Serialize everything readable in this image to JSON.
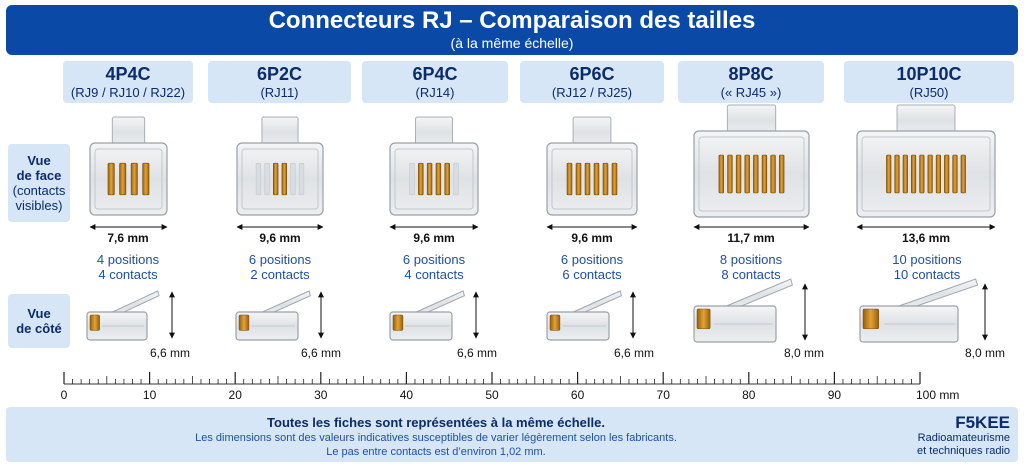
{
  "title": "Connecteurs RJ – Comparaison des tailles",
  "subtitle": "(à la même échelle)",
  "row_labels": {
    "front_line1": "Vue",
    "front_line2": "de face",
    "front_line3": "(contacts",
    "front_line4": "visibles)",
    "side_line1": "Vue",
    "side_line2": "de côté"
  },
  "connectors": [
    {
      "name": "4P4C",
      "aliases": "(RJ9 / RJ10 / RJ22)",
      "width": "7,6 mm",
      "positions": "4 positions",
      "contacts_text": "4 contacts",
      "height": "6,6 mm",
      "n_pos": 4,
      "n_contacts": 4
    },
    {
      "name": "6P2C",
      "aliases": "(RJ11)",
      "width": "9,6 mm",
      "positions": "6 positions",
      "contacts_text": "2 contacts",
      "height": "6,6 mm",
      "n_pos": 6,
      "n_contacts": 2
    },
    {
      "name": "6P4C",
      "aliases": "(RJ14)",
      "width": "9,6 mm",
      "positions": "6 positions",
      "contacts_text": "4 contacts",
      "height": "6,6 mm",
      "n_pos": 6,
      "n_contacts": 4
    },
    {
      "name": "6P6C",
      "aliases": "(RJ12 / RJ25)",
      "width": "9,6 mm",
      "positions": "6 positions",
      "contacts_text": "6 contacts",
      "height": "6,6 mm",
      "n_pos": 6,
      "n_contacts": 6
    },
    {
      "name": "8P8C",
      "aliases": "(« RJ45 »)",
      "width": "11,7 mm",
      "positions": "8 positions",
      "contacts_text": "8 contacts",
      "height": "8,0 mm",
      "n_pos": 8,
      "n_contacts": 8
    },
    {
      "name": "10P10C",
      "aliases": "(RJ50)",
      "width": "13,6 mm",
      "positions": "10 positions",
      "contacts_text": "10 contacts",
      "height": "8,0 mm",
      "n_pos": 10,
      "n_contacts": 10
    }
  ],
  "ruler": {
    "labels": [
      "0",
      "10",
      "20",
      "30",
      "40",
      "50",
      "60",
      "70",
      "80",
      "90",
      "100 mm"
    ],
    "max_mm": 100
  },
  "footer": {
    "main": "Toutes les fiches sont représentées à la même échelle.",
    "note1": "Les dimensions sont des valeurs indicatives susceptibles de varier légèrement selon les fabricants.",
    "note2": "Le pas entre contacts est d’environ 1,02 mm.",
    "brand": "F5KEE",
    "brand_line1": "Radioamateurisme",
    "brand_line2": "et techniques radio"
  },
  "colors": {
    "banner": "#0a4aa6",
    "label_bg": "#d6e6f7",
    "contact_gold": "#c8860f",
    "caption_blue": "#1f4fa8"
  }
}
